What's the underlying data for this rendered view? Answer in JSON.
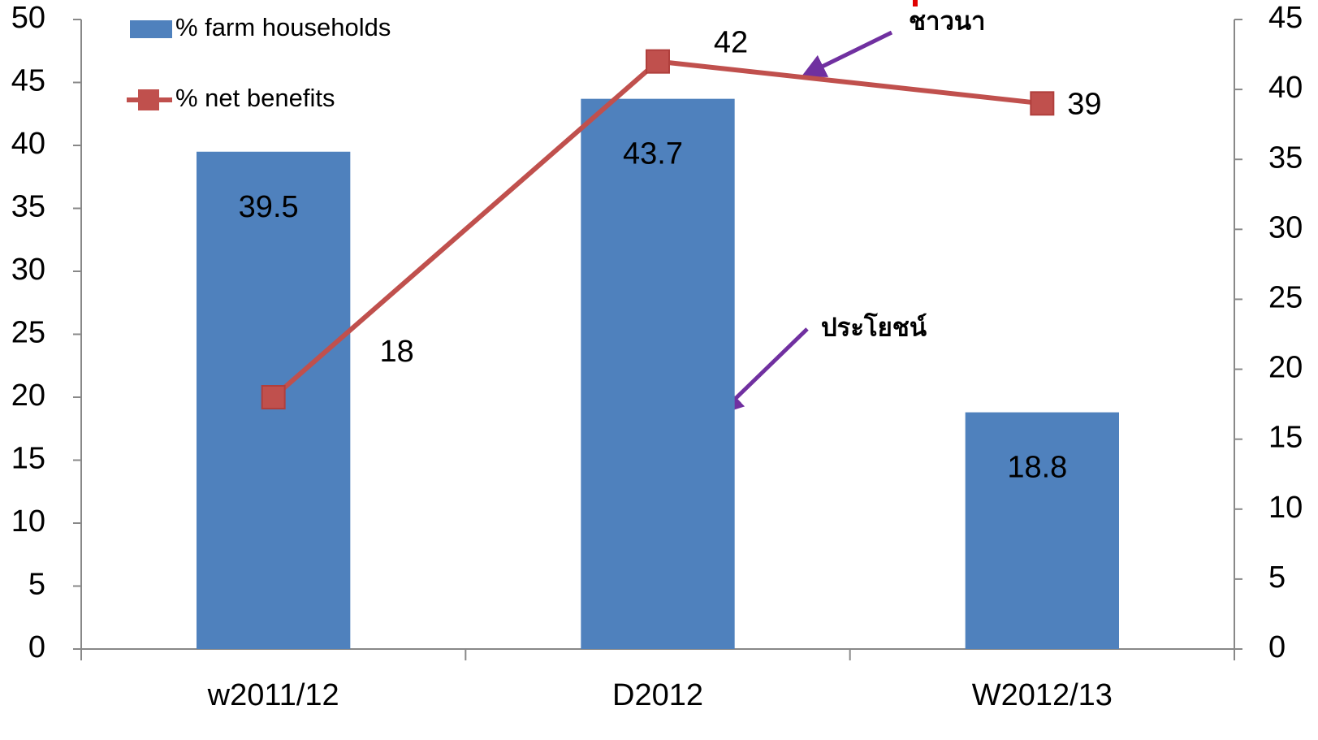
{
  "chart_data": {
    "type": "bar",
    "categories": [
      "w2011/12",
      "D2012",
      "W2012/13"
    ],
    "series": [
      {
        "name": "% farm households",
        "color": "#4f81bd",
        "values": [
          39.5,
          43.7,
          18.8
        ]
      },
      {
        "name": "% net benefits",
        "color": "#c0504d",
        "type": "line",
        "axis": "y2",
        "values": [
          18,
          42,
          39
        ]
      }
    ],
    "ylim": [
      0,
      50
    ],
    "yticks": [
      0,
      5,
      10,
      15,
      20,
      25,
      30,
      35,
      40,
      45,
      50
    ],
    "y2lim": [
      0,
      45
    ],
    "y2ticks": [
      0,
      5,
      10,
      15,
      20,
      25,
      30,
      35,
      40,
      45
    ],
    "annotations": [
      "ชาวนา",
      "ประโยชน์"
    ],
    "grid": false,
    "legend": "top-left"
  }
}
